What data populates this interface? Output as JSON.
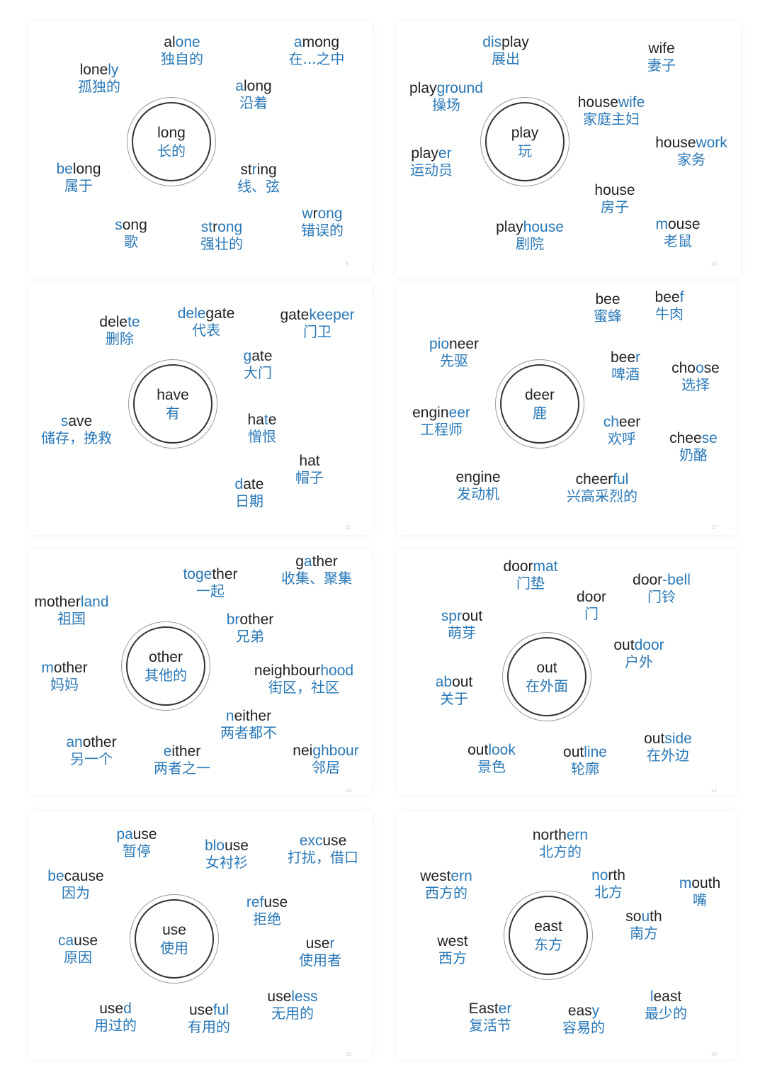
{
  "colors": {
    "accent": "#2a78b7",
    "text": "#222222",
    "ring": "#333333"
  },
  "panels": [
    {
      "page_number": "9",
      "hub": {
        "en": "long",
        "zh": "长的"
      },
      "words": [
        {
          "parts": [
            [
              "al",
              0
            ],
            [
              "one",
              1
            ]
          ],
          "zh": "独自的"
        },
        {
          "parts": [
            [
              "lone",
              0
            ],
            [
              "ly",
              1
            ]
          ],
          "zh": "孤独的"
        },
        {
          "parts": [
            [
              "a",
              1
            ],
            [
              "mong",
              0
            ]
          ],
          "zh": "在...之中"
        },
        {
          "parts": [
            [
              "a",
              1
            ],
            [
              "long",
              0
            ]
          ],
          "zh": "沿着"
        },
        {
          "parts": [
            [
              "be",
              1
            ],
            [
              "long",
              0
            ]
          ],
          "zh": "属于"
        },
        {
          "parts": [
            [
              "st",
              0
            ],
            [
              "r",
              1
            ],
            [
              "ing",
              0
            ]
          ],
          "zh": "线、弦"
        },
        {
          "parts": [
            [
              "s",
              1
            ],
            [
              "ong",
              0
            ]
          ],
          "zh": "歌"
        },
        {
          "parts": [
            [
              "st",
              1
            ],
            [
              "r",
              0
            ],
            [
              "ong",
              1
            ]
          ],
          "zh": "强壮的"
        },
        {
          "parts": [
            [
              "w",
              1
            ],
            [
              "r",
              0
            ],
            [
              "ong",
              1
            ]
          ],
          "zh": "错误的"
        }
      ]
    },
    {
      "page_number": "10",
      "hub": {
        "en": "play",
        "zh": "玩"
      },
      "words": [
        {
          "parts": [
            [
              "dis",
              1
            ],
            [
              "play",
              0
            ]
          ],
          "zh": "展出"
        },
        {
          "parts": [
            [
              "play",
              0
            ],
            [
              "ground",
              1
            ]
          ],
          "zh": "操场"
        },
        {
          "parts": [
            [
              "wife",
              0
            ]
          ],
          "zh": "妻子"
        },
        {
          "parts": [
            [
              "house",
              0
            ],
            [
              "wife",
              1
            ]
          ],
          "zh": "家庭主妇"
        },
        {
          "parts": [
            [
              "play",
              0
            ],
            [
              "er",
              1
            ]
          ],
          "zh": "运动员"
        },
        {
          "parts": [
            [
              "house",
              0
            ],
            [
              "work",
              1
            ]
          ],
          "zh": "家务"
        },
        {
          "parts": [
            [
              "house",
              0
            ]
          ],
          "zh": "房子"
        },
        {
          "parts": [
            [
              "play",
              0
            ],
            [
              "house",
              1
            ]
          ],
          "zh": "剧院"
        },
        {
          "parts": [
            [
              "m",
              1
            ],
            [
              "ouse",
              0
            ]
          ],
          "zh": "老鼠"
        }
      ]
    },
    {
      "page_number": "11",
      "hub": {
        "en": "have",
        "zh": "有"
      },
      "words": [
        {
          "parts": [
            [
              "dele",
              0
            ],
            [
              "te",
              1
            ]
          ],
          "zh": "删除"
        },
        {
          "parts": [
            [
              "dele",
              1
            ],
            [
              "gate",
              0
            ]
          ],
          "zh": "代表"
        },
        {
          "parts": [
            [
              "gate",
              0
            ],
            [
              "keeper",
              1
            ]
          ],
          "zh": "门卫"
        },
        {
          "parts": [
            [
              "g",
              1
            ],
            [
              "ate",
              0
            ]
          ],
          "zh": "大门"
        },
        {
          "parts": [
            [
              "s",
              1
            ],
            [
              "ave",
              0
            ]
          ],
          "zh": "储存，挽救"
        },
        {
          "parts": [
            [
              "ha",
              0
            ],
            [
              "t",
              1
            ],
            [
              "e",
              0
            ]
          ],
          "zh": "憎恨"
        },
        {
          "parts": [
            [
              "hat",
              0
            ]
          ],
          "zh": "帽子"
        },
        {
          "parts": [
            [
              "d",
              1
            ],
            [
              "ate",
              0
            ]
          ],
          "zh": "日期"
        }
      ]
    },
    {
      "page_number": "12",
      "hub": {
        "en": "deer",
        "zh": "鹿"
      },
      "words": [
        {
          "parts": [
            [
              "bee",
              0
            ]
          ],
          "zh": "蜜蜂"
        },
        {
          "parts": [
            [
              "bee",
              0
            ],
            [
              "f",
              1
            ]
          ],
          "zh": "牛肉"
        },
        {
          "parts": [
            [
              "pio",
              1
            ],
            [
              "neer",
              0
            ]
          ],
          "zh": "先驱"
        },
        {
          "parts": [
            [
              "bee",
              0
            ],
            [
              "r",
              1
            ]
          ],
          "zh": "啤酒"
        },
        {
          "parts": [
            [
              "cho",
              0
            ],
            [
              "o",
              1
            ],
            [
              "se",
              0
            ]
          ],
          "zh": "选择"
        },
        {
          "parts": [
            [
              "engin",
              0
            ],
            [
              "eer",
              1
            ]
          ],
          "zh": "工程师"
        },
        {
          "parts": [
            [
              "ch",
              1
            ],
            [
              "eer",
              0
            ]
          ],
          "zh": "欢呼"
        },
        {
          "parts": [
            [
              "chee",
              0
            ],
            [
              "se",
              1
            ]
          ],
          "zh": "奶酪"
        },
        {
          "parts": [
            [
              "engine",
              0
            ]
          ],
          "zh": "发动机"
        },
        {
          "parts": [
            [
              "cheer",
              0
            ],
            [
              "ful",
              1
            ]
          ],
          "zh": "兴高采烈的"
        }
      ]
    },
    {
      "page_number": "13",
      "hub": {
        "en": "other",
        "zh": "其他的"
      },
      "words": [
        {
          "parts": [
            [
              "together",
              0
            ]
          ],
          "zh": "一起",
          "custom": [
            [
              "to",
              1
            ],
            [
              "ge",
              1
            ],
            [
              "ther",
              0
            ]
          ]
        },
        {
          "parts": [
            [
              "g",
              0
            ],
            [
              "a",
              1
            ],
            [
              "ther",
              0
            ]
          ],
          "zh": "收集、聚集"
        },
        {
          "parts": [
            [
              "mother",
              0
            ],
            [
              "land",
              1
            ]
          ],
          "zh": "祖国"
        },
        {
          "parts": [
            [
              "b",
              1
            ],
            [
              "r",
              1
            ],
            [
              "other",
              0
            ]
          ],
          "zh": "兄弟"
        },
        {
          "parts": [
            [
              "m",
              1
            ],
            [
              "other",
              0
            ]
          ],
          "zh": "妈妈"
        },
        {
          "parts": [
            [
              "neighbour",
              0
            ],
            [
              "hood",
              1
            ]
          ],
          "zh": "街区，社区"
        },
        {
          "parts": [
            [
              "n",
              1
            ],
            [
              "either",
              0
            ]
          ],
          "zh": "两者都不"
        },
        {
          "parts": [
            [
              "an",
              1
            ],
            [
              "other",
              0
            ]
          ],
          "zh": "另一个"
        },
        {
          "parts": [
            [
              "e",
              1
            ],
            [
              "ither",
              0
            ]
          ],
          "zh": "两者之一"
        },
        {
          "parts": [
            [
              "nei",
              0
            ],
            [
              "ghbour",
              1
            ]
          ],
          "zh": "邻居"
        }
      ]
    },
    {
      "page_number": "14",
      "hub": {
        "en": "out",
        "zh": "在外面"
      },
      "words": [
        {
          "parts": [
            [
              "door",
              0
            ],
            [
              "mat",
              1
            ]
          ],
          "zh": "门垫"
        },
        {
          "parts": [
            [
              "door",
              0
            ]
          ],
          "zh": "门"
        },
        {
          "parts": [
            [
              "door",
              0
            ],
            [
              "-bell",
              1
            ]
          ],
          "zh": "门铃"
        },
        {
          "parts": [
            [
              "spr",
              1
            ],
            [
              "out",
              0
            ]
          ],
          "zh": "萌芽"
        },
        {
          "parts": [
            [
              "out",
              0
            ],
            [
              "door",
              1
            ]
          ],
          "zh": "户外"
        },
        {
          "parts": [
            [
              "ab",
              1
            ],
            [
              "out",
              0
            ]
          ],
          "zh": "关于"
        },
        {
          "parts": [
            [
              "out",
              0
            ],
            [
              "look",
              1
            ]
          ],
          "zh": "景色"
        },
        {
          "parts": [
            [
              "out",
              0
            ],
            [
              "line",
              1
            ]
          ],
          "zh": "轮廓"
        },
        {
          "parts": [
            [
              "out",
              0
            ],
            [
              "side",
              1
            ]
          ],
          "zh": "在外边"
        }
      ]
    },
    {
      "page_number": "15",
      "hub": {
        "en": "use",
        "zh": "使用"
      },
      "words": [
        {
          "parts": [
            [
              "pa",
              1
            ],
            [
              "use",
              0
            ]
          ],
          "zh": "暂停"
        },
        {
          "parts": [
            [
              "blo",
              1
            ],
            [
              "use",
              0
            ]
          ],
          "zh": "女衬衫"
        },
        {
          "parts": [
            [
              "exc",
              1
            ],
            [
              "use",
              0
            ]
          ],
          "zh": "打扰，借口"
        },
        {
          "parts": [
            [
              "be",
              1
            ],
            [
              "cause",
              0
            ]
          ],
          "zh": "因为"
        },
        {
          "parts": [
            [
              "ref",
              1
            ],
            [
              "use",
              0
            ]
          ],
          "zh": "拒绝"
        },
        {
          "parts": [
            [
              "ca",
              1
            ],
            [
              "use",
              0
            ]
          ],
          "zh": "原因"
        },
        {
          "parts": [
            [
              "use",
              0
            ],
            [
              "r",
              1
            ]
          ],
          "zh": "使用者"
        },
        {
          "parts": [
            [
              "use",
              0
            ],
            [
              "d",
              1
            ]
          ],
          "zh": "用过的"
        },
        {
          "parts": [
            [
              "use",
              0
            ],
            [
              "ful",
              1
            ]
          ],
          "zh": "有用的"
        },
        {
          "parts": [
            [
              "use",
              0
            ],
            [
              "less",
              1
            ]
          ],
          "zh": "无用的"
        }
      ]
    },
    {
      "page_number": "16",
      "hub": {
        "en": "east",
        "zh": "东方"
      },
      "words": [
        {
          "parts": [
            [
              "north",
              0
            ],
            [
              "ern",
              1
            ]
          ],
          "zh": "北方的"
        },
        {
          "parts": [
            [
              "west",
              0
            ],
            [
              "ern",
              1
            ]
          ],
          "zh": "西方的"
        },
        {
          "parts": [
            [
              "no",
              1
            ],
            [
              "rth",
              0
            ]
          ],
          "zh": "北方"
        },
        {
          "parts": [
            [
              "mouth",
              0
            ]
          ],
          "zh": "嘴",
          "custom": [
            [
              "m",
              1
            ],
            [
              "outh",
              0
            ]
          ]
        },
        {
          "parts": [
            [
              "so",
              0
            ],
            [
              "u",
              1
            ],
            [
              "th",
              0
            ]
          ],
          "zh": "南方"
        },
        {
          "parts": [
            [
              "west",
              0
            ]
          ],
          "zh": "西方"
        },
        {
          "parts": [
            [
              "East",
              0
            ],
            [
              "er",
              1
            ]
          ],
          "zh": "复活节"
        },
        {
          "parts": [
            [
              "easy",
              0
            ]
          ],
          "zh": "容易的",
          "custom": [
            [
              "eas",
              0
            ],
            [
              "y",
              1
            ]
          ]
        },
        {
          "parts": [
            [
              "l",
              1
            ],
            [
              "east",
              0
            ]
          ],
          "zh": "最少的"
        }
      ]
    }
  ]
}
